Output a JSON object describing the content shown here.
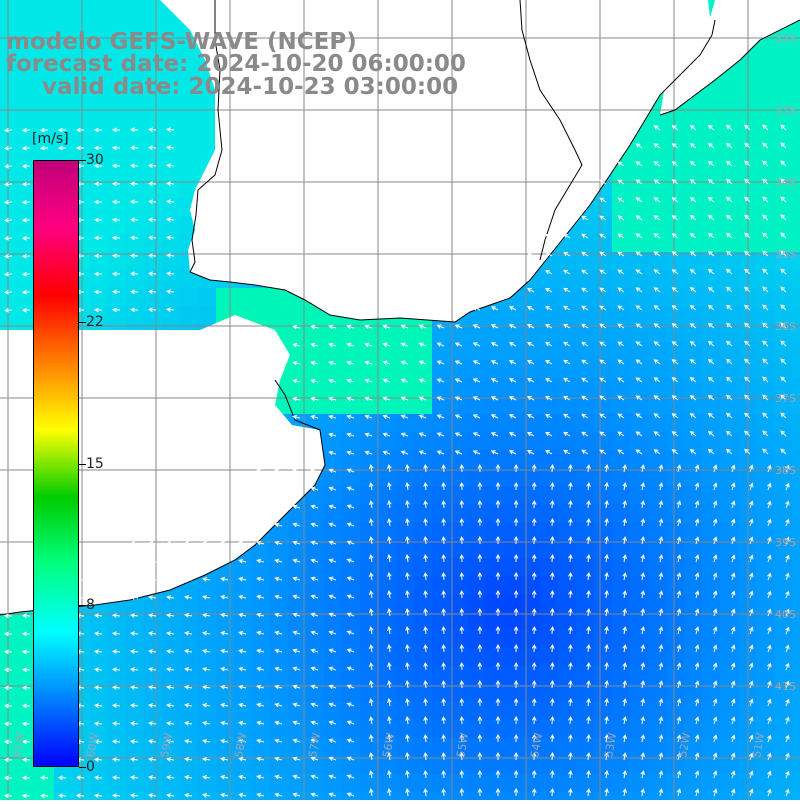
{
  "title": {
    "model": "modelo GEFS-WAVE (NCEP)",
    "forecast": "forecast date: 2024-10-20 06:00:00",
    "valid": "valid date: 2024-10-23 03:00:00"
  },
  "colorbar": {
    "unit": "[m/s]",
    "min": 0,
    "max": 30,
    "labels": [
      "30",
      "22",
      "15",
      "8",
      "0"
    ],
    "label_values": [
      30,
      22,
      15,
      8,
      0
    ],
    "colors": [
      "#0000ff",
      "#0080ff",
      "#00ffff",
      "#00ff80",
      "#00cc00",
      "#ffff00",
      "#ff8000",
      "#ff0000",
      "#ff0080",
      "#c0007a"
    ]
  },
  "map": {
    "lat_labels": [
      "32S",
      "33S",
      "34S",
      "35S",
      "36S",
      "37S",
      "38S",
      "39S",
      "40S",
      "41S"
    ],
    "lon_labels": [
      "61W",
      "60W",
      "59W",
      "58W",
      "57W",
      "56W",
      "55W",
      "54W",
      "53W",
      "52W",
      "51W"
    ],
    "field": "wind speed and direction",
    "ocean_colors": {
      "low": "#0044ff",
      "mid": "#0099ff",
      "high": "#00e8e8",
      "coast": "#00ff99"
    },
    "land_color": "#ffffff",
    "grid_color": "#888888",
    "coast_color": "#000000",
    "arrow_color": "#ffffff"
  }
}
